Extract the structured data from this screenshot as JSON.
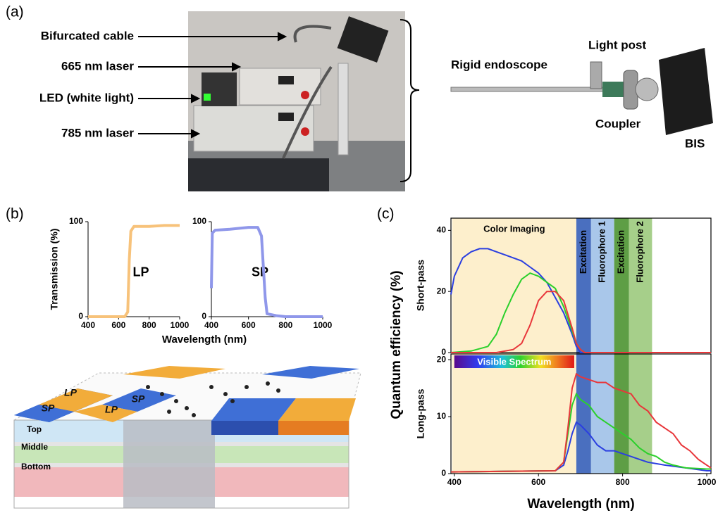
{
  "panel_labels": [
    "(a)",
    "(b)",
    "(c)"
  ],
  "photo_labels": [
    "Bifurcated cable",
    "665 nm laser",
    "LED (white light)",
    "785 nm laser",
    "Rigid endoscope",
    "Light post",
    "Coupler",
    "BIS"
  ],
  "diagram": {
    "filter_labels": [
      "LP",
      "SP",
      "SP",
      "LP"
    ],
    "layer_labels": [
      "Top",
      "Middle",
      "Bottom"
    ]
  },
  "chart_data": [
    {
      "type": "line",
      "ylabel": "Transmission (%)",
      "xlabel": "Wavelength (nm)",
      "annotation": "LP",
      "x": [
        400,
        500,
        600,
        640,
        660,
        670,
        680,
        700,
        800,
        900,
        1000
      ],
      "values": [
        0,
        0,
        0,
        0,
        5,
        60,
        90,
        95,
        95,
        96,
        96
      ],
      "color": "#f7c27a",
      "xlim": [
        400,
        1000
      ],
      "ylim": [
        0,
        100
      ],
      "xticks": [
        400,
        600,
        800,
        1000
      ],
      "yticks": [
        0,
        100
      ]
    },
    {
      "type": "line",
      "annotation": "SP",
      "x": [
        400,
        405,
        420,
        500,
        600,
        650,
        670,
        690,
        700,
        750,
        800,
        900,
        1000
      ],
      "values": [
        30,
        88,
        91,
        92,
        94,
        94,
        85,
        20,
        3,
        1,
        0,
        0,
        0
      ],
      "color": "#8f97ea",
      "xlim": [
        400,
        1000
      ],
      "ylim": [
        0,
        100
      ],
      "xticks": [
        400,
        600,
        800,
        1000
      ],
      "yticks": [
        0,
        100
      ]
    },
    {
      "type": "line",
      "ylabel": "Quantum efficiency (%)",
      "sublabel": "Short-pass",
      "xlim": [
        392,
        1010
      ],
      "ylim": [
        0,
        44
      ],
      "yticks": [
        0,
        20,
        40
      ],
      "bands": [
        {
          "label": "Color Imaging",
          "x": [
            395,
            690
          ],
          "color": "#fdefcc"
        },
        {
          "label": "Excitation",
          "x": [
            690,
            725
          ],
          "color": "#4a6fbf"
        },
        {
          "label": "Fluorophore 1",
          "x": [
            725,
            780
          ],
          "color": "#a9c7ea"
        },
        {
          "label": "Excitation",
          "x": [
            780,
            815
          ],
          "color": "#5e9e45"
        },
        {
          "label": "Fluorophore 2",
          "x": [
            815,
            870
          ],
          "color": "#a6cf8a"
        }
      ],
      "series": [
        {
          "color": "#2b3fe0",
          "x": [
            392,
            400,
            420,
            440,
            460,
            480,
            500,
            520,
            540,
            560,
            580,
            600,
            620,
            640,
            660,
            680,
            690,
            700,
            710,
            1010
          ],
          "values": [
            19,
            25,
            31,
            33,
            34,
            34,
            33,
            32,
            31,
            30,
            28,
            26,
            23,
            18,
            13,
            6,
            2,
            0,
            0,
            0
          ]
        },
        {
          "color": "#2bd02b",
          "x": [
            392,
            440,
            480,
            500,
            520,
            540,
            560,
            580,
            600,
            620,
            640,
            660,
            680,
            690,
            700,
            710,
            1010
          ],
          "values": [
            0,
            0.5,
            2,
            6,
            13,
            19,
            24,
            26,
            25,
            23,
            21,
            15,
            7,
            3,
            1,
            0,
            0
          ]
        },
        {
          "color": "#e8363a",
          "x": [
            392,
            500,
            540,
            560,
            580,
            600,
            620,
            640,
            660,
            680,
            690,
            700,
            710,
            1010
          ],
          "values": [
            0,
            0,
            1,
            3,
            9,
            17,
            20,
            20,
            17,
            8,
            3,
            1,
            0,
            0
          ]
        }
      ]
    },
    {
      "type": "line",
      "sublabel": "Long-pass",
      "xlabel": "Wavelength (nm)",
      "xlim": [
        392,
        1010
      ],
      "ylim": [
        0,
        21
      ],
      "xticks": [
        400,
        600,
        800,
        1000
      ],
      "yticks": [
        0,
        10,
        20
      ],
      "annotation": {
        "label": "Visible Spectrum",
        "x": [
          400,
          685
        ]
      },
      "series": [
        {
          "color": "#2b3fe0",
          "x": [
            392,
            640,
            660,
            670,
            680,
            690,
            700,
            720,
            740,
            760,
            780,
            800,
            820,
            840,
            860,
            900,
            950,
            1000,
            1010
          ],
          "values": [
            0.3,
            0.5,
            1.5,
            4,
            7,
            9,
            8.5,
            7,
            5,
            4,
            4,
            3.5,
            3,
            2.5,
            2,
            1.5,
            1,
            0.5,
            0.5
          ]
        },
        {
          "color": "#2bd02b",
          "x": [
            392,
            640,
            660,
            670,
            680,
            690,
            700,
            720,
            740,
            760,
            780,
            800,
            820,
            840,
            860,
            880,
            900,
            920,
            950,
            1000,
            1010
          ],
          "values": [
            0.3,
            0.5,
            2,
            7,
            12,
            14,
            13,
            12,
            10,
            9,
            8,
            7,
            6,
            4.5,
            3.5,
            3,
            2,
            1.5,
            1,
            0.8,
            0.8
          ]
        },
        {
          "color": "#e8363a",
          "x": [
            392,
            640,
            660,
            670,
            680,
            690,
            700,
            720,
            740,
            760,
            780,
            800,
            820,
            840,
            860,
            880,
            900,
            920,
            940,
            960,
            980,
            1000,
            1010
          ],
          "values": [
            0.3,
            0.5,
            2,
            8,
            15,
            17.5,
            17,
            16.5,
            16,
            16,
            15,
            14.5,
            14,
            12,
            11,
            9,
            8,
            7,
            5,
            4,
            2.5,
            1.5,
            1
          ]
        }
      ]
    }
  ]
}
